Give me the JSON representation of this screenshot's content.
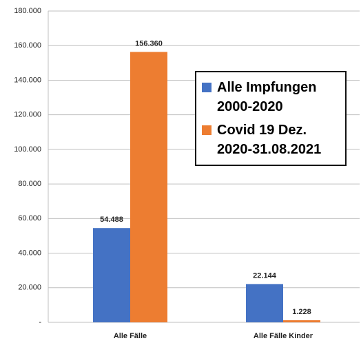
{
  "chart_data": {
    "type": "bar",
    "categories": [
      "Alle Fälle",
      "Alle Fälle Kinder"
    ],
    "series": [
      {
        "name": "Alle Impfungen 2000-2020",
        "color": "#4472c4",
        "values": [
          54488,
          22144
        ],
        "value_labels": [
          "54.488",
          "22.144"
        ]
      },
      {
        "name": "Covid 19 Dez. 2020-31.08.2021",
        "color": "#ed7d31",
        "values": [
          156360,
          1228
        ],
        "value_labels": [
          "156.360",
          "1.228"
        ]
      }
    ],
    "ylim": [
      0,
      180000
    ],
    "yticks": [
      {
        "value": 0,
        "label": "-"
      },
      {
        "value": 20000,
        "label": "20.000"
      },
      {
        "value": 40000,
        "label": "40.000"
      },
      {
        "value": 60000,
        "label": "60.000"
      },
      {
        "value": 80000,
        "label": "80.000"
      },
      {
        "value": 100000,
        "label": "100.000"
      },
      {
        "value": 120000,
        "label": "120.000"
      },
      {
        "value": 140000,
        "label": "140.000"
      },
      {
        "value": 160000,
        "label": "160.000"
      },
      {
        "value": 180000,
        "label": "180.000"
      }
    ],
    "grid": true,
    "legend": "right"
  }
}
